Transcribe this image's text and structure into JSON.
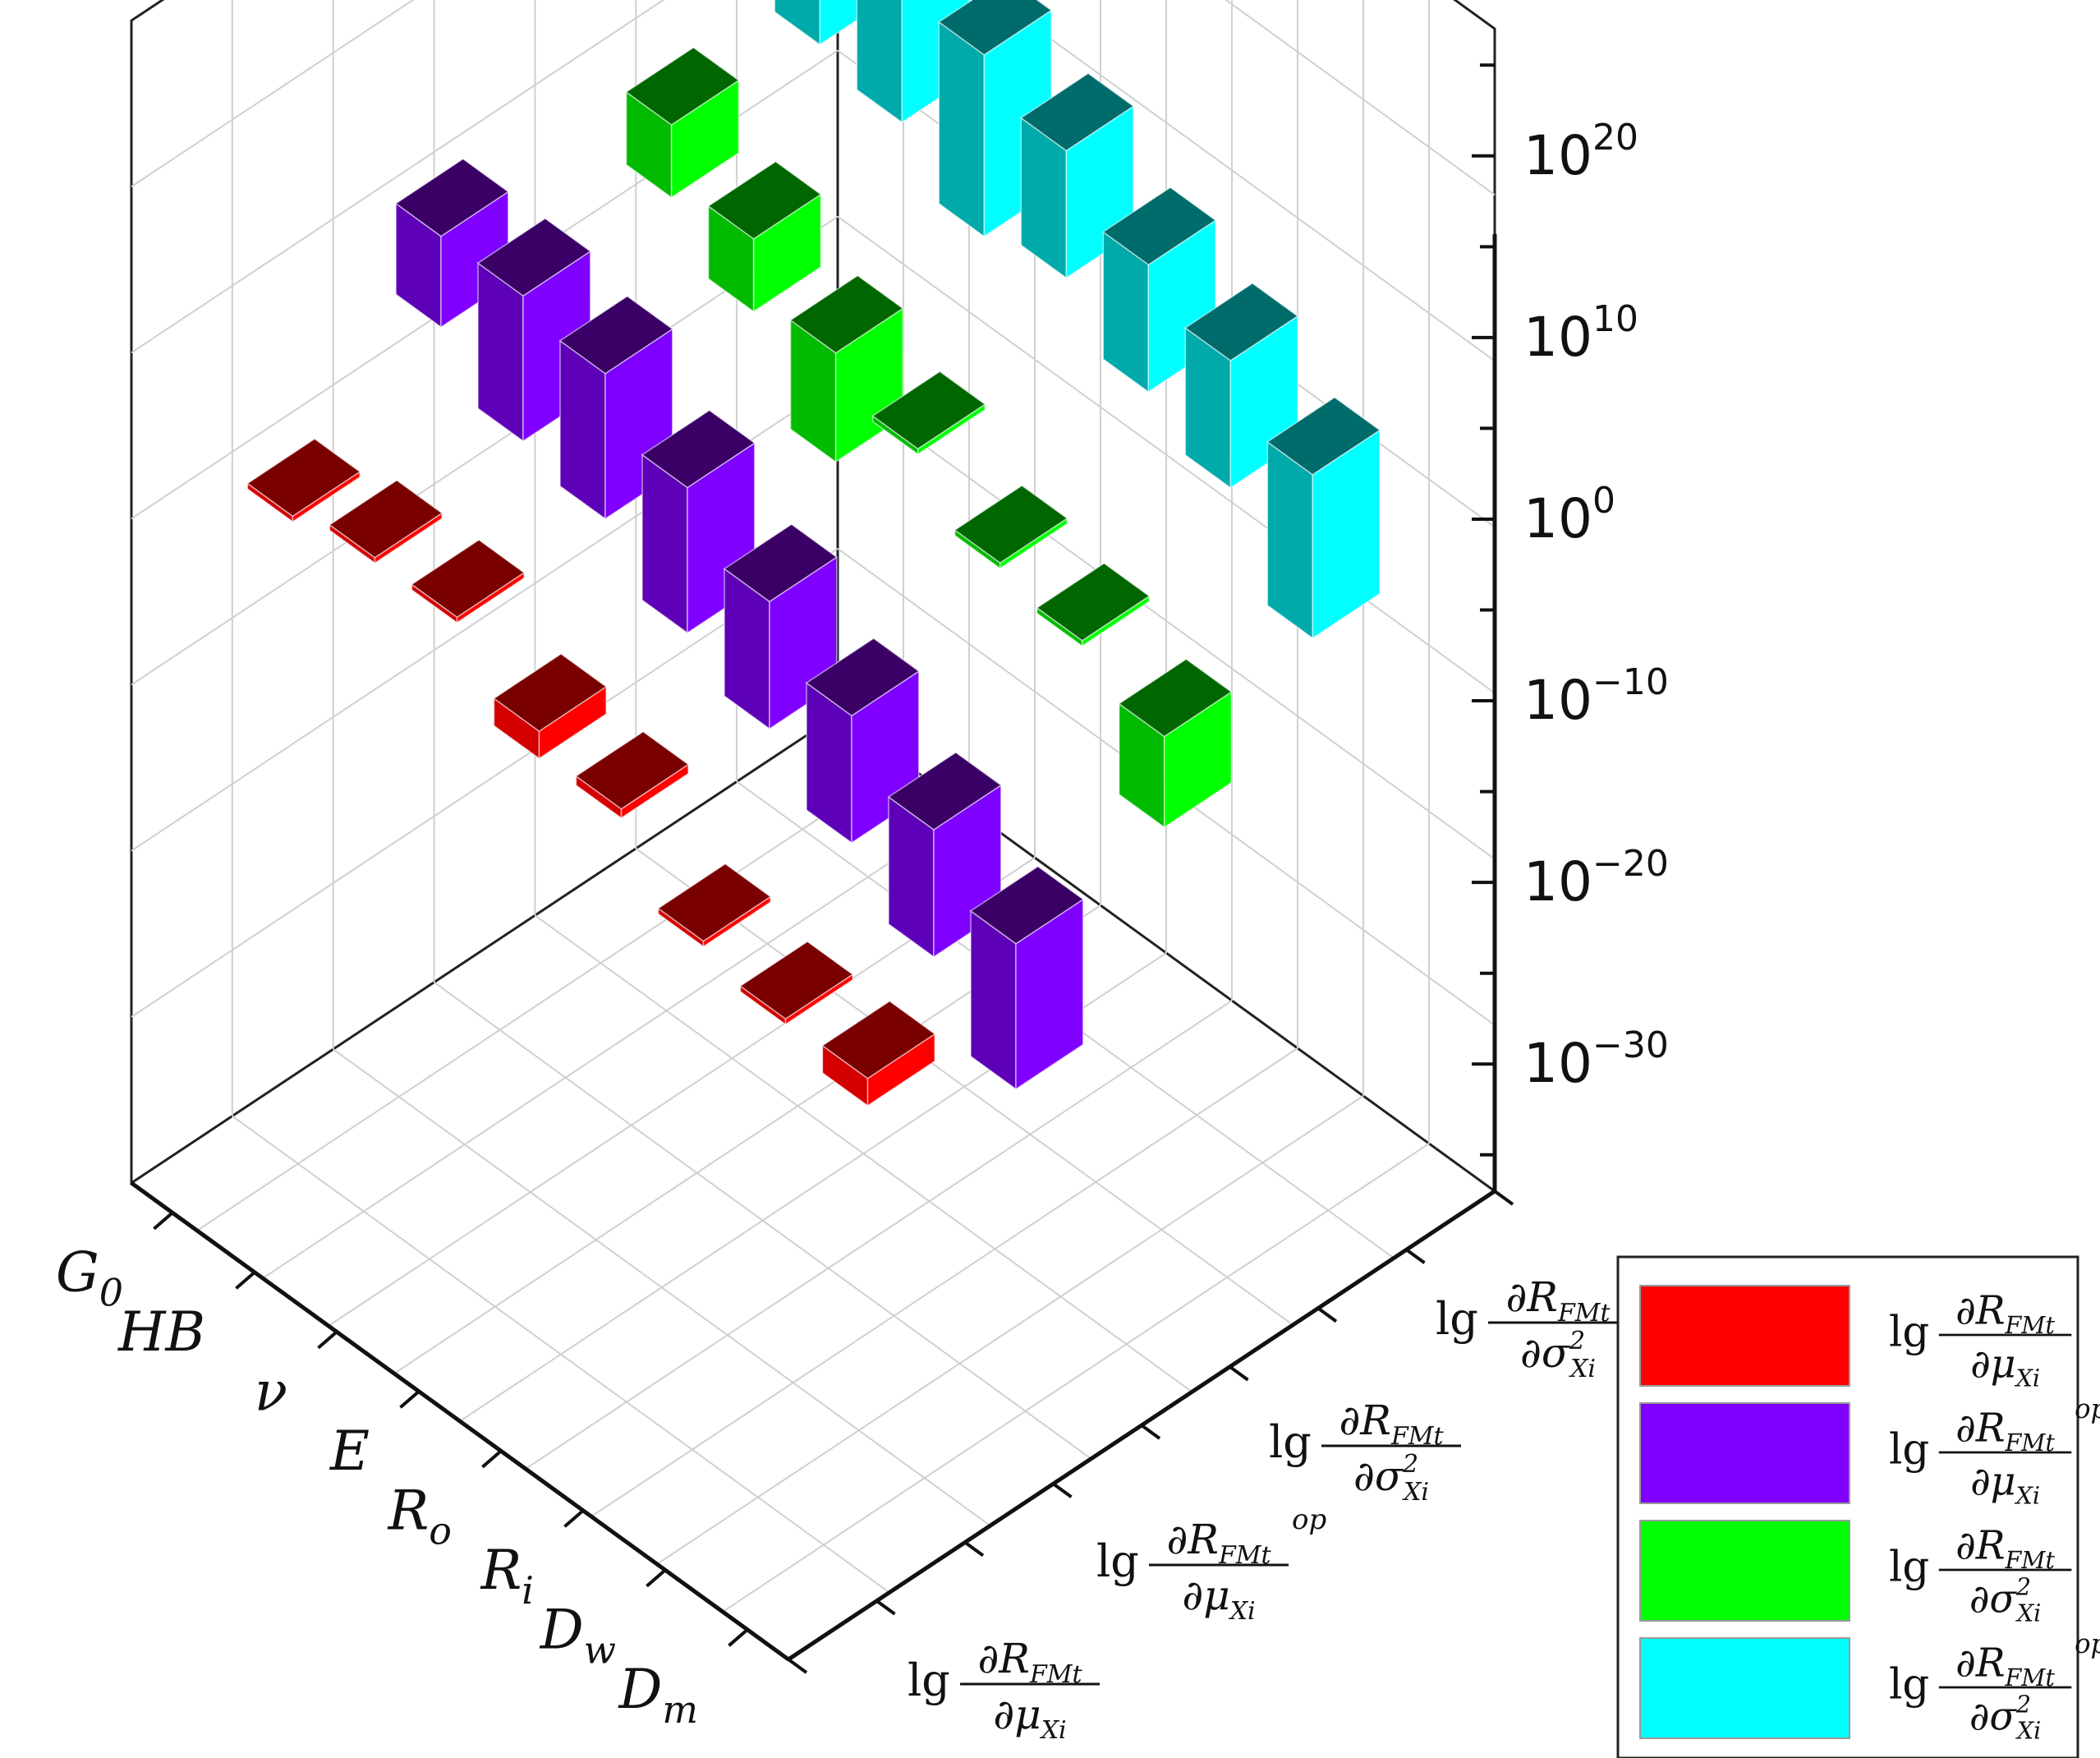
{
  "chart_data": {
    "type": "bar3d",
    "x_categories": [
      {
        "base": "G",
        "sub": "0"
      },
      {
        "base": "HB",
        "sub": ""
      },
      {
        "base": "ν",
        "sub": ""
      },
      {
        "base": "E",
        "sub": ""
      },
      {
        "base": "R",
        "sub": "o"
      },
      {
        "base": "R",
        "sub": "i"
      },
      {
        "base": "D",
        "sub": "w"
      },
      {
        "base": "D",
        "sub": "m"
      }
    ],
    "z_axis": {
      "scale": "log",
      "range_exponent": [
        -37,
        27
      ],
      "ticks": [
        {
          "base": "10",
          "exp": "20"
        },
        {
          "base": "10",
          "exp": "10"
        },
        {
          "base": "10",
          "exp": "0"
        },
        {
          "base": "10",
          "exp": "−10"
        },
        {
          "base": "10",
          "exp": "−20"
        },
        {
          "base": "10",
          "exp": "−30"
        }
      ]
    },
    "series": [
      {
        "name": {
          "prefix": "lg",
          "numerator": "∂R",
          "num_sub": "FMt",
          "sup": "",
          "denominator": "∂μ",
          "den_sub": "Xi",
          "den_sup": ""
        },
        "color": "#ff0000",
        "top_color": "#7a0000",
        "side_color": "#d40000",
        "values_log10": [
          -1,
          0,
          0,
          -3,
          -4,
          -8,
          -9,
          -9
        ]
      },
      {
        "name": {
          "prefix": "lg",
          "numerator": "∂R",
          "num_sub": "FMt",
          "sup": "op",
          "denominator": "∂μ",
          "den_sub": "Xi",
          "den_sup": ""
        },
        "color": "#8000ff",
        "top_color": "#3a0066",
        "side_color": "#5e00b8",
        "values_log10": [
          9,
          9,
          8,
          5,
          2,
          -1,
          -4,
          -7
        ]
      },
      {
        "name": {
          "prefix": "lg",
          "numerator": "∂R",
          "num_sub": "FMt",
          "sup": "",
          "denominator": "∂σ",
          "den_sub": "Xi",
          "den_sup": "2"
        },
        "color": "#00ff00",
        "top_color": "#006600",
        "side_color": "#00bb00",
        "values_log10": [
          17,
          13,
          10,
          7,
          5,
          2,
          1,
          -1
        ]
      },
      {
        "name": {
          "prefix": "lg",
          "numerator": "∂R",
          "num_sub": "FMt",
          "sup": "op",
          "denominator": "∂σ",
          "den_sub": "Xi",
          "den_sup": "2"
        },
        "color": "#00ffff",
        "top_color": "#006b6b",
        "side_color": "#00aaaa",
        "values_log10": [
          23,
          22,
          21,
          18,
          16,
          13,
          11,
          8
        ]
      }
    ],
    "bar_heights_log10": {
      "lg_dR_dmu": [
        0.3,
        0.3,
        0.3,
        1.5,
        0.5,
        0.3,
        0.3,
        1.5
      ],
      "lg_dR_dmu_op": [
        5,
        8,
        8,
        8,
        7,
        7,
        7,
        8
      ],
      "lg_dR_dsigma2": [
        0.3,
        4,
        4,
        6,
        0.3,
        0.3,
        0.3,
        5
      ],
      "lg_dR_dsigma2_op": [
        3,
        10,
        10,
        10,
        7,
        7,
        7,
        9
      ]
    },
    "legend_position": "bottom-right",
    "grid": true
  }
}
